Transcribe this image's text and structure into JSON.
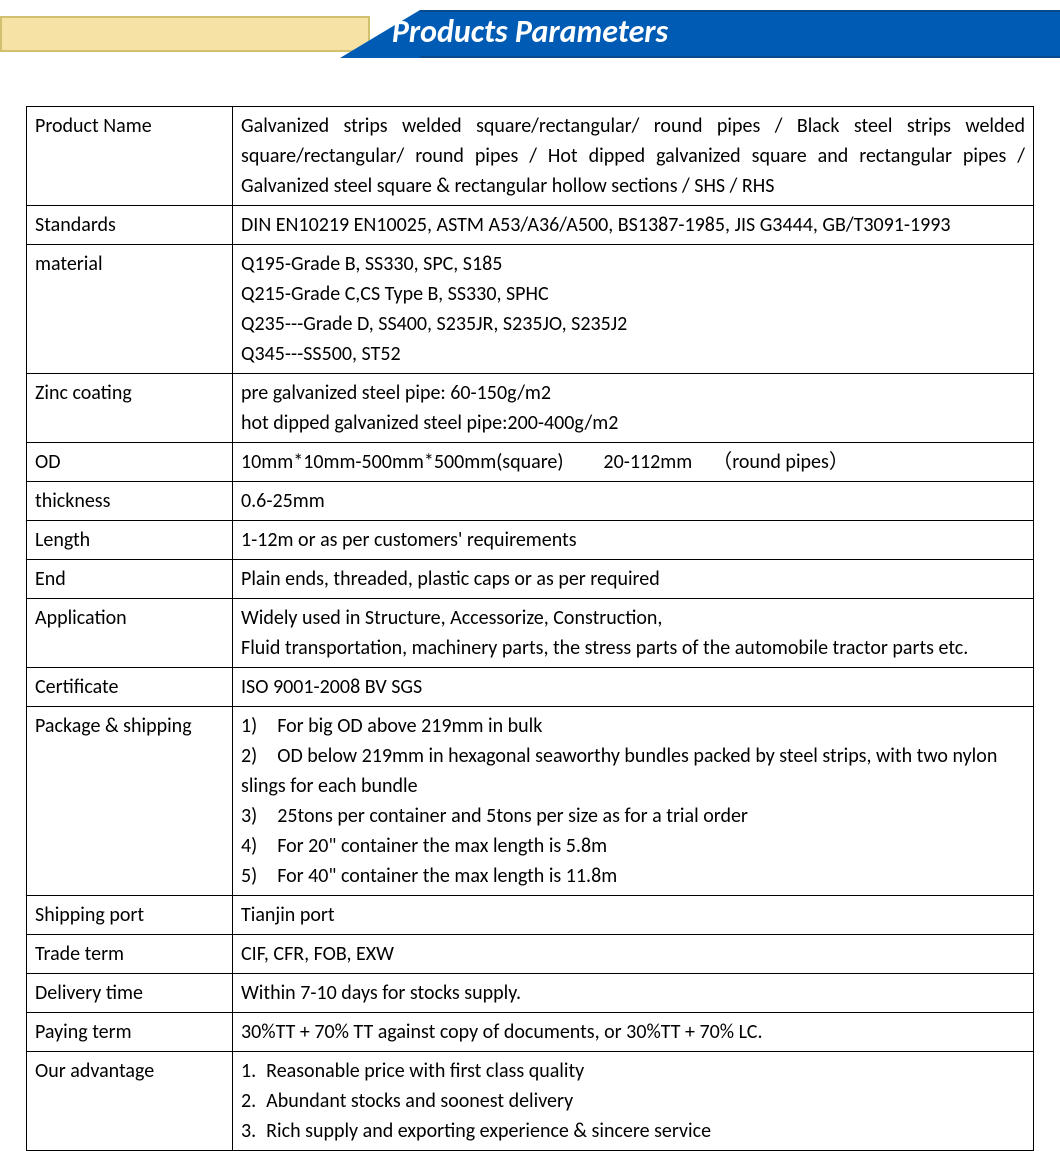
{
  "header": {
    "title": "Products Parameters",
    "yellow_strip_color": "#f6e2a4",
    "yellow_border_color": "#d0c070",
    "blue_strip_color": "#005bb5",
    "title_color": "#ffffff",
    "title_fontsize": 32
  },
  "table": {
    "border_color": "#000000",
    "text_color": "#000000",
    "row_fontsize": 20,
    "label_col_width": 206,
    "rows": [
      {
        "label": "Product Name",
        "value": "Galvanized strips welded square/rectangular/ round pipes / Black steel strips welded square/rectangular/ round pipes / Hot dipped galvanized square and rectangular pipes / Galvanized steel square & rectangular hollow sections / SHS / RHS",
        "justify": true
      },
      {
        "label": "Standards",
        "value": "DIN EN10219 EN10025, ASTM A53/A36/A500, BS1387-1985, JIS G3444, GB/T3091-1993"
      },
      {
        "label": "material",
        "lines": [
          "Q195-Grade B, SS330, SPC, S185",
          "Q215-Grade C,CS Type B, SS330, SPHC",
          "Q235---Grade D, SS400, S235JR, S235JO, S235J2",
          "Q345---SS500, ST52"
        ]
      },
      {
        "label": "Zinc coating",
        "lines": [
          "pre galvanized steel pipe: 60-150g/m2",
          "hot dipped galvanized steel pipe:200-400g/m2"
        ]
      },
      {
        "label": "OD",
        "value": "10mm*10mm-500mm*500mm(square)  20-112mm （round pipes）"
      },
      {
        "label": "thickness",
        "value": "0.6-25mm"
      },
      {
        "label": "Length",
        "value": "1-12m or as per customers' requirements"
      },
      {
        "label": "End",
        "value": "Plain ends, threaded, plastic caps or as per required"
      },
      {
        "label": "Application",
        "lines": [
          "Widely used in Structure, Accessorize, Construction,",
          "Fluid transportation, machinery parts, the stress parts of the automobile tractor parts etc."
        ]
      },
      {
        "label": "Certificate",
        "value": "ISO 9001-2008 BV SGS"
      },
      {
        "label": "Package & shipping",
        "lines": [
          "1) For big OD above 219mm in bulk",
          "2) OD below 219mm in hexagonal seaworthy bundles packed by steel strips, with two nylon slings for each bundle",
          "3) 25tons per container and 5tons per size as for a trial order",
          "4) For 20\" container the max length is 5.8m",
          "5) For 40\" container the max length is 11.8m"
        ]
      },
      {
        "label": "Shipping port",
        "value": "Tianjin port"
      },
      {
        "label": "Trade term",
        "value": "CIF, CFR, FOB, EXW"
      },
      {
        "label": "Delivery time",
        "value": "Within 7-10 days for stocks supply."
      },
      {
        "label": "Paying term",
        "value": "30%TT + 70% TT against copy of documents, or 30%TT + 70% LC."
      },
      {
        "label": "Our advantage",
        "lines": [
          "1. Reasonable price with first class quality",
          "2. Abundant stocks and soonest delivery",
          "3. Rich supply and exporting experience & sincere service"
        ]
      }
    ]
  }
}
